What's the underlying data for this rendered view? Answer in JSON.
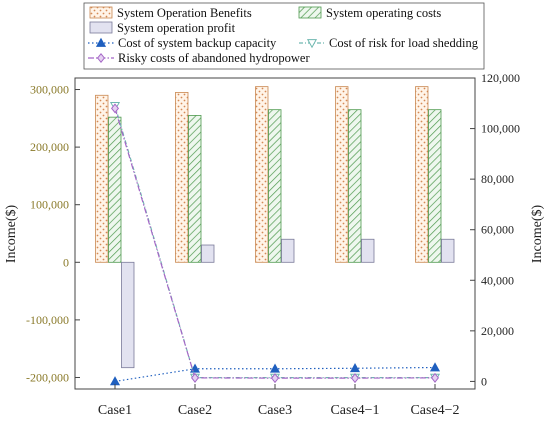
{
  "chart_data": {
    "type": "bar",
    "categories": [
      "Case1",
      "Case2",
      "Case3",
      "Case4−1",
      "Case4−2"
    ],
    "ylabel_left": "Income($)",
    "ylabel_right": "Income($)",
    "ylim_left": [
      -220000,
      320000
    ],
    "ylim_right": [
      -3000,
      120000
    ],
    "yticks_left": [
      -200000,
      -100000,
      0,
      100000,
      200000,
      300000
    ],
    "yticks_left_labels": [
      "-200,000",
      "-100,000",
      "0",
      "100,000",
      "200,000",
      "300,000"
    ],
    "yticks_right": [
      0,
      20000,
      40000,
      60000,
      80000,
      100000,
      120000
    ],
    "yticks_right_labels": [
      "0",
      "20,000",
      "40,000",
      "60,000",
      "80,000",
      "100,000",
      "120,000"
    ],
    "bar_series": [
      {
        "name": "System Operation Benefits",
        "axis": "left",
        "pattern": "dots",
        "color": "#e9a97c",
        "values": [
          290000,
          295000,
          305000,
          305000,
          305000
        ]
      },
      {
        "name": "System operating costs",
        "axis": "left",
        "pattern": "hatch",
        "color": "#6aa86a",
        "values": [
          252000,
          255000,
          265000,
          265000,
          265000
        ]
      },
      {
        "name": "System operation profit",
        "axis": "left",
        "pattern": "solid",
        "color": "#e2e2f0",
        "values": [
          -183000,
          30000,
          40000,
          40000,
          40000
        ]
      }
    ],
    "line_series": [
      {
        "name": "Cost of system backup capacity",
        "axis": "right",
        "marker": "triangle-up",
        "color": "#1f5fbf",
        "values": [
          0,
          5000,
          5000,
          5200,
          5500
        ]
      },
      {
        "name": "Cost of risk for load shedding",
        "axis": "right",
        "marker": "triangle-down",
        "color": "#6fb8b0",
        "values": [
          109000,
          1500,
          1500,
          1500,
          1500
        ]
      },
      {
        "name": "Risky costs of abandoned hydropower",
        "axis": "right",
        "marker": "diamond",
        "color": "#a466c6",
        "values": [
          108000,
          1400,
          1300,
          1300,
          1400
        ]
      }
    ],
    "legend": "top",
    "grid": false
  },
  "colors": {
    "left_axis_tick": "#8a7a2a",
    "right_axis_tick": "#222222",
    "axis_line": "#444444"
  }
}
